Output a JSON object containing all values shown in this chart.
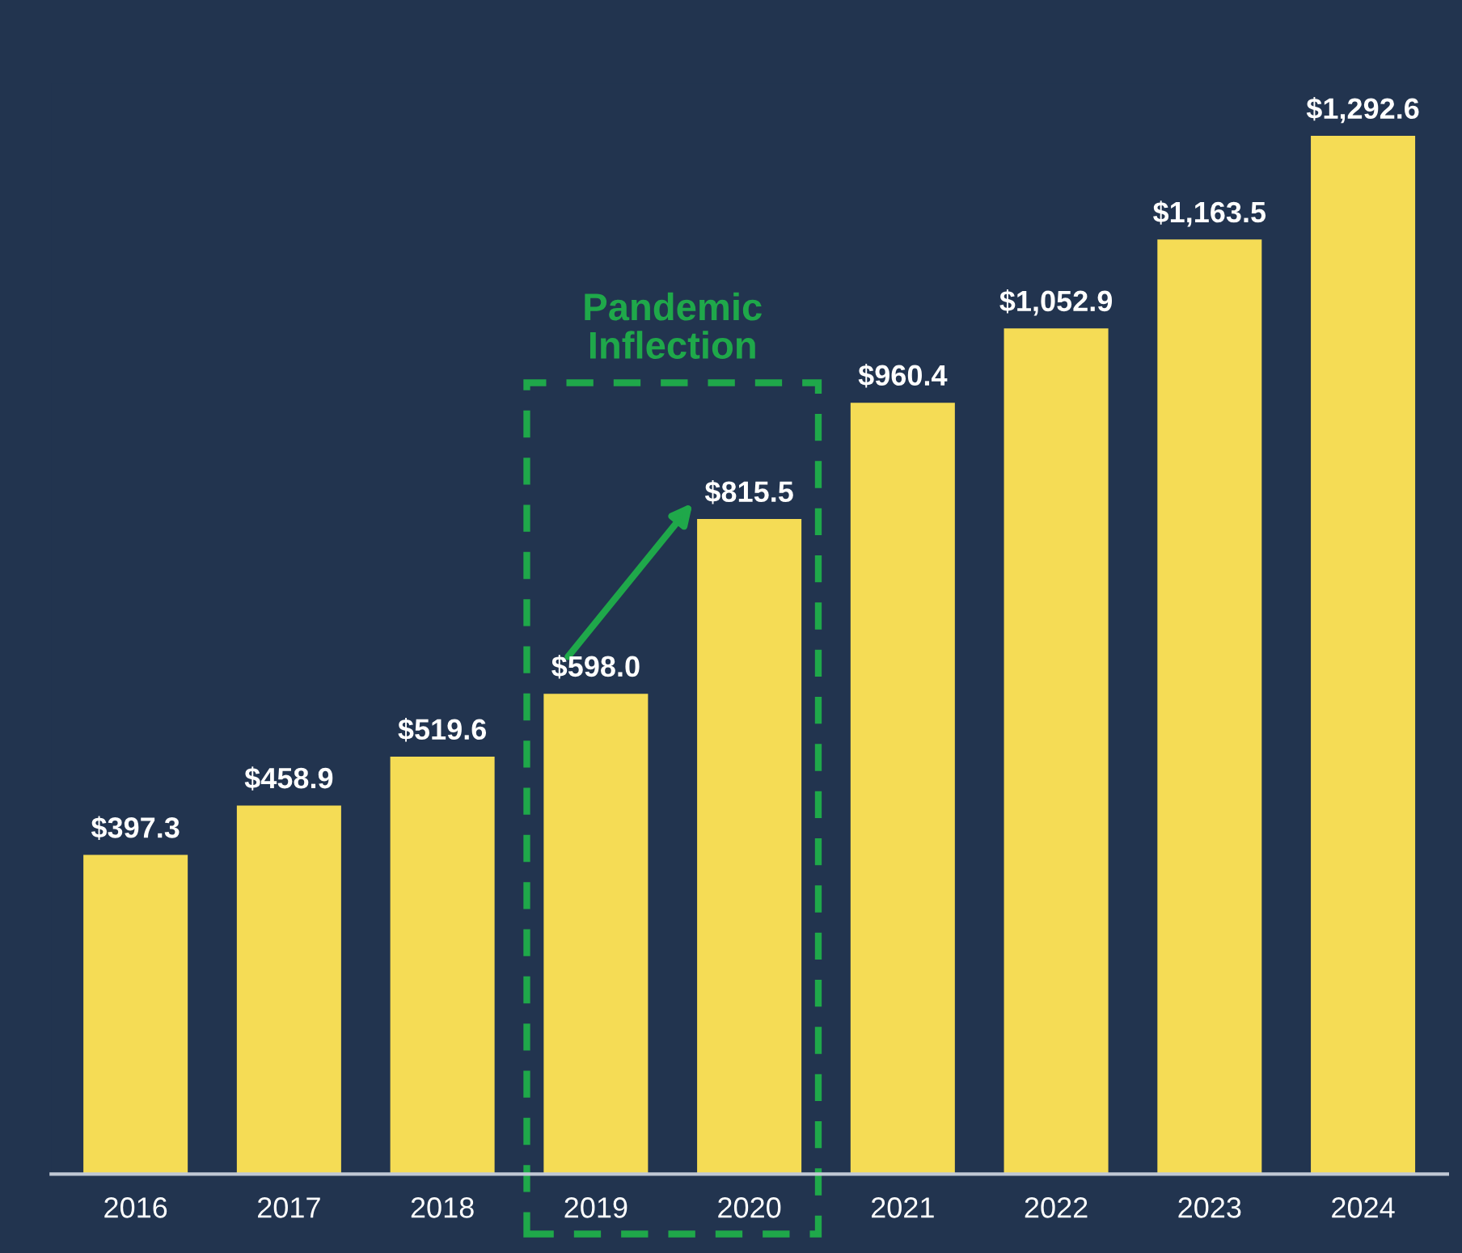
{
  "chart_data": {
    "type": "bar",
    "categories": [
      "2016",
      "2017",
      "2018",
      "2019",
      "2020",
      "2021",
      "2022",
      "2023",
      "2024"
    ],
    "values": [
      397.3,
      458.9,
      519.6,
      598.0,
      815.5,
      960.4,
      1052.9,
      1163.5,
      1292.6
    ],
    "value_labels": [
      "$397.3",
      "$458.9",
      "$519.6",
      "$598.0",
      "$815.5",
      "$960.4",
      "$1,052.9",
      "$1,163.5",
      "$1,292.6"
    ],
    "color": "#f5dc55",
    "annotations": [
      "Pandemic Inflection"
    ],
    "grid": false
  }
}
